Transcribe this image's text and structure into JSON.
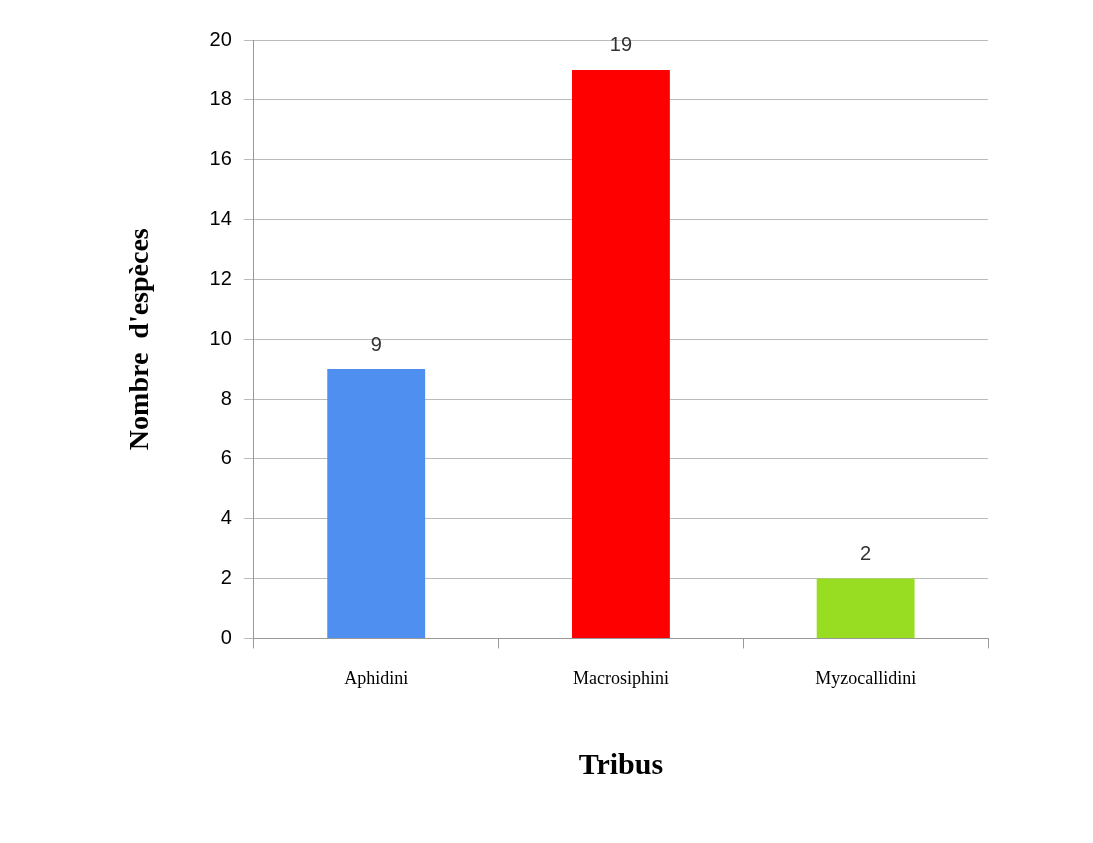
{
  "chart_data": {
    "type": "bar",
    "xlabel": "Tribus",
    "ylabel": "Nombre  d'espèces",
    "categories": [
      "Aphidini",
      "Macrosiphini",
      "Myzocallidini"
    ],
    "values": [
      9,
      19,
      2
    ],
    "colors": [
      "#4f8ff0",
      "#ff0000",
      "#99dd22"
    ],
    "ylim": [
      0,
      20
    ],
    "yticks": [
      0,
      2,
      4,
      6,
      8,
      10,
      12,
      14,
      16,
      18,
      20
    ],
    "grid": "y",
    "data_labels": true,
    "legend": false
  }
}
